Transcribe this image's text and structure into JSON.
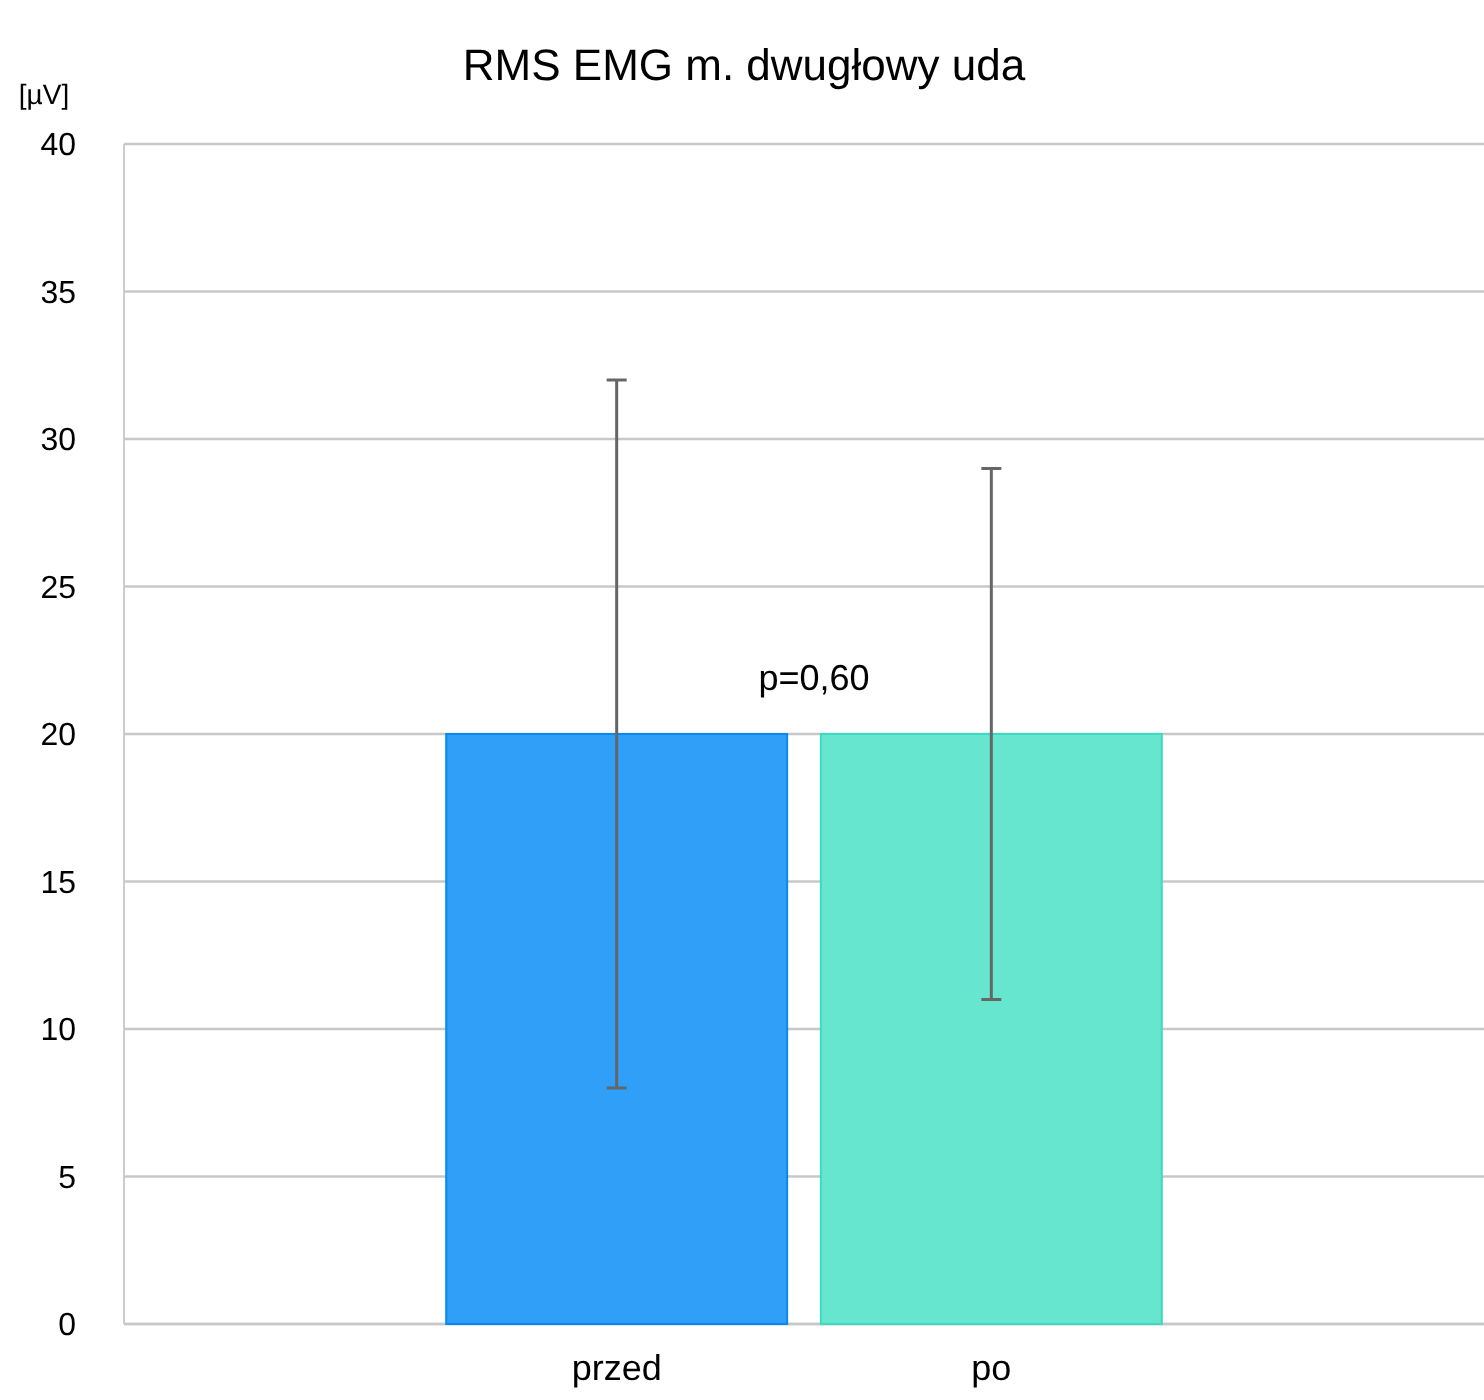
{
  "chart_data": {
    "type": "bar",
    "title": "RMS EMG m. dwugłowy uda",
    "ylabel": "[µV]",
    "categories": [
      "przed",
      "po"
    ],
    "values": [
      20,
      20
    ],
    "colors": [
      "#2f9ff8",
      "#66e5cf"
    ],
    "errors": [
      12,
      9
    ],
    "ylim": [
      0,
      40
    ],
    "yticks": [
      0,
      5,
      10,
      15,
      20,
      25,
      30,
      35,
      40
    ],
    "grid": "y",
    "annotations": [
      "p=0,60"
    ]
  }
}
